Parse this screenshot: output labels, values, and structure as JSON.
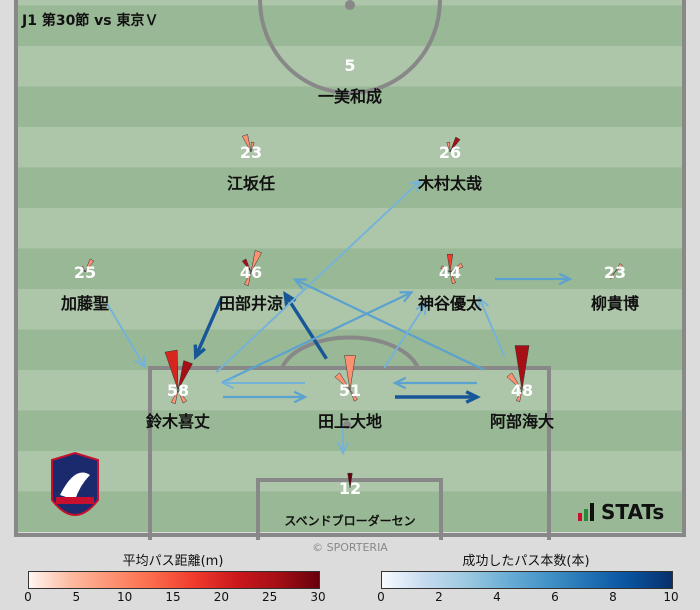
{
  "title": "J1 第30節 vs 東京Ｖ",
  "copyright": "© SPORTERIA",
  "brand": "STATs",
  "colors": {
    "pitch_light": "#adc5a9",
    "pitch_dark": "#99b895",
    "lines": "#888888"
  },
  "players": [
    {
      "num": "5",
      "name": "一美和成"
    },
    {
      "num": "23",
      "name": "江坂任"
    },
    {
      "num": "26",
      "name": "木村太哉"
    },
    {
      "num": "25",
      "name": "加藤聖"
    },
    {
      "num": "46",
      "name": "田部井涼"
    },
    {
      "num": "44",
      "name": "神谷優太"
    },
    {
      "num": "23",
      "name": "柳貴博"
    },
    {
      "num": "58",
      "name": "鈴木喜丈"
    },
    {
      "num": "51",
      "name": "田上大地"
    },
    {
      "num": "48",
      "name": "阿部海大"
    },
    {
      "num": "12",
      "name": "スベンドブローダーセン"
    }
  ],
  "passes": [
    {
      "from": 3,
      "to": 7,
      "count": 3
    },
    {
      "from": 4,
      "to": 7,
      "count": 8
    },
    {
      "from": 8,
      "to": 4,
      "count": 8
    },
    {
      "from": 7,
      "to": 2,
      "count": 3
    },
    {
      "from": 7,
      "to": 5,
      "count": 4
    },
    {
      "from": 9,
      "to": 4,
      "count": 4
    },
    {
      "from": 8,
      "to": 5,
      "count": 3
    },
    {
      "from": 9,
      "to": 5,
      "count": 3
    },
    {
      "from": 5,
      "to": 6,
      "count": 4
    },
    {
      "from": 8,
      "to": 7,
      "count": 3
    },
    {
      "from": 7,
      "to": 8,
      "count": 4
    },
    {
      "from": 9,
      "to": 8,
      "count": 4
    },
    {
      "from": 8,
      "to": 9,
      "count": 8
    },
    {
      "from": 8,
      "to": 10,
      "count": 3
    }
  ],
  "legend_distance": {
    "title": "平均パス距離(m)",
    "ticks": [
      "0",
      "5",
      "10",
      "15",
      "20",
      "25",
      "30"
    ],
    "colors": [
      "#fff5f0",
      "#fc9272",
      "#ef3b2c",
      "#a50f15",
      "#67000d"
    ]
  },
  "legend_count": {
    "title": "成功したパス本数(本)",
    "ticks": [
      "0",
      "2",
      "4",
      "6",
      "8",
      "10"
    ],
    "colors": [
      "#f7fbff",
      "#c6dbef",
      "#6baed6",
      "#2171b5",
      "#08306b"
    ]
  }
}
